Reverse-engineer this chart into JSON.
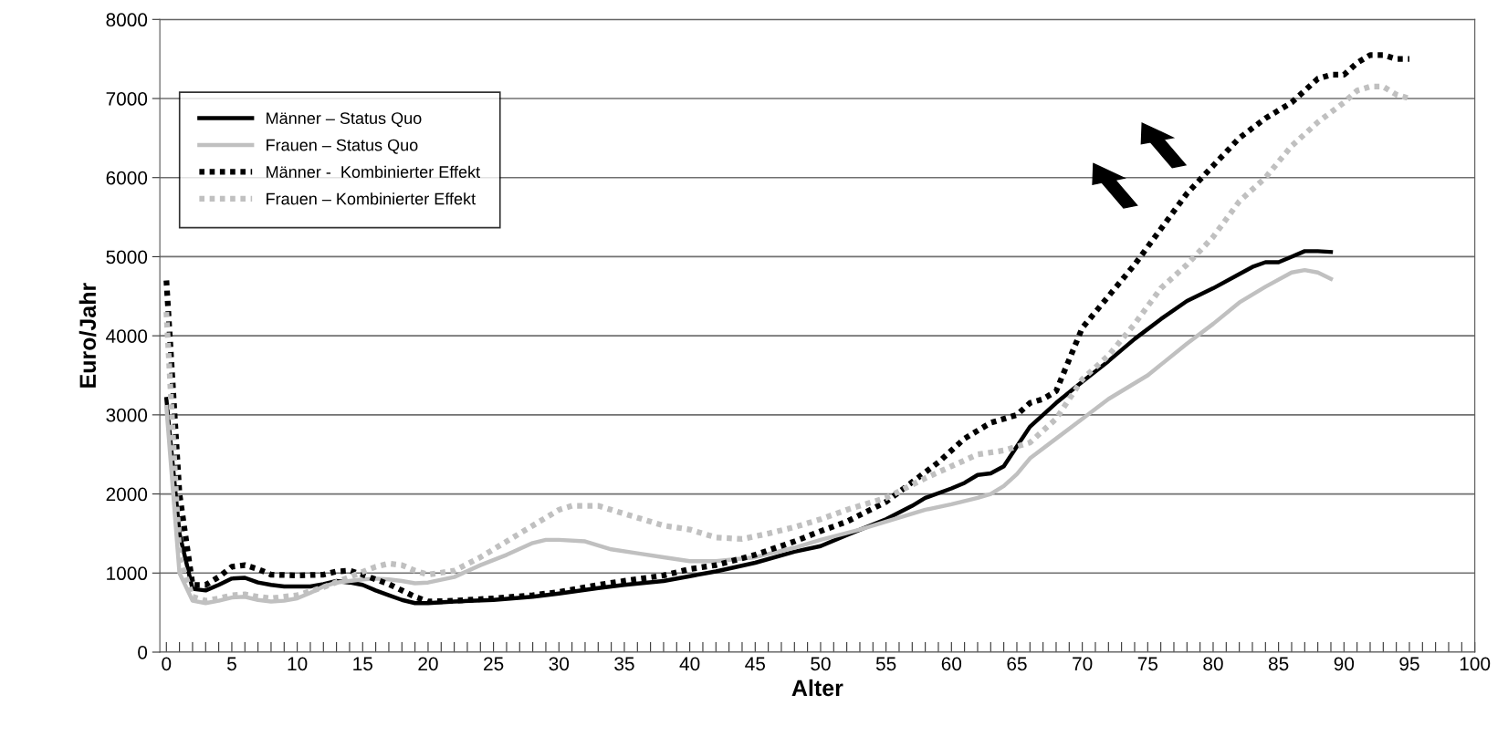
{
  "chart_data": {
    "type": "line",
    "xlabel": "Alter",
    "ylabel": "Euro/Jahr",
    "xlim": [
      -0.5,
      100
    ],
    "ylim": [
      0,
      8000
    ],
    "yticks": [
      0,
      1000,
      2000,
      3000,
      4000,
      5000,
      6000,
      7000,
      8000
    ],
    "xticks": [
      0,
      {
        "value": 1,
        "label": null
      },
      {
        "value": 2,
        "label": null
      },
      {
        "value": 3,
        "label": null
      },
      {
        "value": 4,
        "label": null
      },
      5,
      {
        "value": 6,
        "label": null
      },
      {
        "value": 7,
        "label": null
      },
      {
        "value": 8,
        "label": null
      },
      {
        "value": 9,
        "label": null
      },
      10,
      {
        "value": 11,
        "label": null
      },
      {
        "value": 12,
        "label": null
      },
      {
        "value": 13,
        "label": null
      },
      {
        "value": 14,
        "label": null
      },
      15,
      {
        "value": 16,
        "label": null
      },
      {
        "value": 17,
        "label": null
      },
      {
        "value": 18,
        "label": null
      },
      {
        "value": 19,
        "label": null
      },
      20,
      {
        "value": 21,
        "label": null
      },
      {
        "value": 22,
        "label": null
      },
      {
        "value": 23,
        "label": null
      },
      {
        "value": 24,
        "label": null
      },
      25,
      {
        "value": 26,
        "label": null
      },
      {
        "value": 27,
        "label": null
      },
      {
        "value": 28,
        "label": null
      },
      {
        "value": 29,
        "label": null
      },
      30,
      {
        "value": 31,
        "label": null
      },
      {
        "value": 32,
        "label": null
      },
      {
        "value": 33,
        "label": null
      },
      {
        "value": 34,
        "label": null
      },
      35,
      {
        "value": 36,
        "label": null
      },
      {
        "value": 37,
        "label": null
      },
      {
        "value": 38,
        "label": null
      },
      {
        "value": 39,
        "label": null
      },
      40,
      {
        "value": 41,
        "label": null
      },
      {
        "value": 42,
        "label": null
      },
      {
        "value": 43,
        "label": null
      },
      {
        "value": 44,
        "label": null
      },
      45,
      {
        "value": 46,
        "label": null
      },
      {
        "value": 47,
        "label": null
      },
      {
        "value": 48,
        "label": null
      },
      {
        "value": 49,
        "label": null
      },
      50,
      {
        "value": 51,
        "label": null
      },
      {
        "value": 52,
        "label": null
      },
      {
        "value": 53,
        "label": null
      },
      {
        "value": 54,
        "label": null
      },
      55,
      {
        "value": 56,
        "label": null
      },
      {
        "value": 57,
        "label": null
      },
      {
        "value": 58,
        "label": null
      },
      {
        "value": 59,
        "label": null
      },
      60,
      {
        "value": 61,
        "label": null
      },
      {
        "value": 62,
        "label": null
      },
      {
        "value": 63,
        "label": null
      },
      {
        "value": 64,
        "label": null
      },
      65,
      {
        "value": 66,
        "label": null
      },
      {
        "value": 67,
        "label": null
      },
      {
        "value": 68,
        "label": null
      },
      {
        "value": 69,
        "label": null
      },
      70,
      {
        "value": 71,
        "label": null
      },
      {
        "value": 72,
        "label": null
      },
      {
        "value": 73,
        "label": null
      },
      {
        "value": 74,
        "label": null
      },
      75,
      {
        "value": 76,
        "label": null
      },
      {
        "value": 77,
        "label": null
      },
      {
        "value": 78,
        "label": null
      },
      {
        "value": 79,
        "label": null
      },
      80,
      {
        "value": 81,
        "label": null
      },
      {
        "value": 82,
        "label": null
      },
      {
        "value": 83,
        "label": null
      },
      {
        "value": 84,
        "label": null
      },
      85,
      {
        "value": 86,
        "label": null
      },
      {
        "value": 87,
        "label": null
      },
      {
        "value": 88,
        "label": null
      },
      {
        "value": 89,
        "label": null
      },
      90,
      {
        "value": 91,
        "label": null
      },
      {
        "value": 92,
        "label": null
      },
      {
        "value": 93,
        "label": null
      },
      {
        "value": 94,
        "label": null
      },
      95,
      {
        "value": 96,
        "label": null
      },
      {
        "value": 97,
        "label": null
      },
      {
        "value": 98,
        "label": null
      },
      {
        "value": 99,
        "label": null
      },
      100
    ],
    "grid": "y",
    "legend": "top left",
    "marker": "none",
    "series": [
      {
        "name": "Männer – Status Quo",
        "color": "#000000",
        "line_style": "solid",
        "x": [
          0,
          1,
          2,
          3,
          4,
          5,
          6,
          7,
          8,
          9,
          10,
          11,
          12,
          13,
          14,
          15,
          16,
          17,
          18,
          19,
          20,
          22,
          25,
          28,
          30,
          33,
          35,
          38,
          40,
          42,
          45,
          48,
          50,
          52,
          55,
          57,
          58,
          60,
          61,
          62,
          63,
          64,
          65,
          66,
          68,
          70,
          72,
          74,
          76,
          78,
          80,
          82,
          83,
          84,
          85,
          86,
          87,
          88,
          89
        ],
        "values": [
          3200,
          1500,
          800,
          780,
          850,
          930,
          940,
          880,
          850,
          830,
          830,
          830,
          860,
          900,
          880,
          850,
          780,
          720,
          660,
          620,
          620,
          640,
          660,
          700,
          740,
          810,
          850,
          900,
          960,
          1020,
          1130,
          1270,
          1340,
          1480,
          1680,
          1850,
          1950,
          2070,
          2140,
          2240,
          2260,
          2350,
          2600,
          2850,
          3150,
          3420,
          3680,
          3960,
          4210,
          4440,
          4600,
          4780,
          4870,
          4930,
          4930,
          5000,
          5070,
          5070,
          5060
        ]
      },
      {
        "name": "Frauen – Status Quo",
        "color": "#c0c0c0",
        "line_style": "solid",
        "x": [
          0,
          1,
          2,
          3,
          4,
          5,
          6,
          7,
          8,
          9,
          10,
          11,
          12,
          13,
          14,
          15,
          16,
          17,
          18,
          19,
          20,
          22,
          24,
          26,
          28,
          29,
          30,
          32,
          34,
          36,
          38,
          40,
          42,
          45,
          48,
          50,
          53,
          55,
          58,
          60,
          62,
          63,
          64,
          65,
          66,
          68,
          70,
          72,
          75,
          78,
          80,
          82,
          84,
          86,
          87,
          88,
          89
        ],
        "values": [
          3100,
          1000,
          650,
          620,
          650,
          690,
          700,
          660,
          640,
          650,
          680,
          750,
          830,
          880,
          900,
          920,
          930,
          920,
          900,
          870,
          880,
          950,
          1100,
          1230,
          1380,
          1420,
          1420,
          1400,
          1300,
          1250,
          1200,
          1150,
          1150,
          1200,
          1320,
          1420,
          1550,
          1650,
          1800,
          1870,
          1950,
          2000,
          2100,
          2250,
          2450,
          2700,
          2950,
          3200,
          3500,
          3900,
          4150,
          4420,
          4620,
          4800,
          4830,
          4800,
          4720
        ]
      },
      {
        "name": "Männer -  Kombinierter Effekt",
        "color": "#000000",
        "line_style": "dotted",
        "x": [
          0,
          1,
          2,
          3,
          4,
          5,
          6,
          7,
          8,
          10,
          12,
          13,
          14,
          15,
          17,
          19,
          20,
          22,
          25,
          28,
          30,
          33,
          35,
          38,
          40,
          42,
          45,
          48,
          50,
          52,
          55,
          57,
          59,
          61,
          63,
          65,
          66,
          67,
          68,
          69,
          70,
          72,
          74,
          76,
          78,
          80,
          82,
          84,
          86,
          88,
          89,
          90,
          91,
          92,
          93,
          94,
          95
        ],
        "values": [
          4700,
          2000,
          850,
          850,
          950,
          1080,
          1100,
          1050,
          980,
          970,
          980,
          1020,
          1030,
          980,
          860,
          700,
          640,
          650,
          680,
          720,
          760,
          850,
          900,
          970,
          1050,
          1100,
          1230,
          1400,
          1530,
          1650,
          1900,
          2150,
          2400,
          2700,
          2900,
          3000,
          3150,
          3200,
          3300,
          3700,
          4100,
          4500,
          4900,
          5350,
          5800,
          6150,
          6500,
          6750,
          6950,
          7250,
          7300,
          7300,
          7450,
          7550,
          7550,
          7500,
          7500
        ]
      },
      {
        "name": "Frauen – Kombinierter Effekt",
        "color": "#c0c0c0",
        "line_style": "dotted",
        "x": [
          0,
          1,
          2,
          3,
          4,
          5,
          6,
          7,
          8,
          10,
          12,
          14,
          16,
          17,
          18,
          19,
          20,
          22,
          24,
          26,
          28,
          30,
          31,
          33,
          35,
          38,
          40,
          42,
          44,
          46,
          48,
          50,
          52,
          55,
          58,
          60,
          62,
          64,
          66,
          68,
          70,
          72,
          74,
          76,
          78,
          80,
          82,
          84,
          86,
          88,
          90,
          91,
          92,
          93,
          94,
          95
        ],
        "values": [
          4300,
          1200,
          700,
          650,
          680,
          720,
          730,
          700,
          680,
          720,
          820,
          950,
          1080,
          1120,
          1100,
          1030,
          980,
          1030,
          1200,
          1400,
          1600,
          1800,
          1850,
          1850,
          1750,
          1600,
          1550,
          1450,
          1430,
          1500,
          1580,
          1680,
          1800,
          1950,
          2200,
          2350,
          2500,
          2550,
          2650,
          2950,
          3450,
          3750,
          4150,
          4600,
          4900,
          5250,
          5700,
          6000,
          6400,
          6700,
          6950,
          7100,
          7150,
          7150,
          7050,
          7000
        ]
      }
    ]
  }
}
